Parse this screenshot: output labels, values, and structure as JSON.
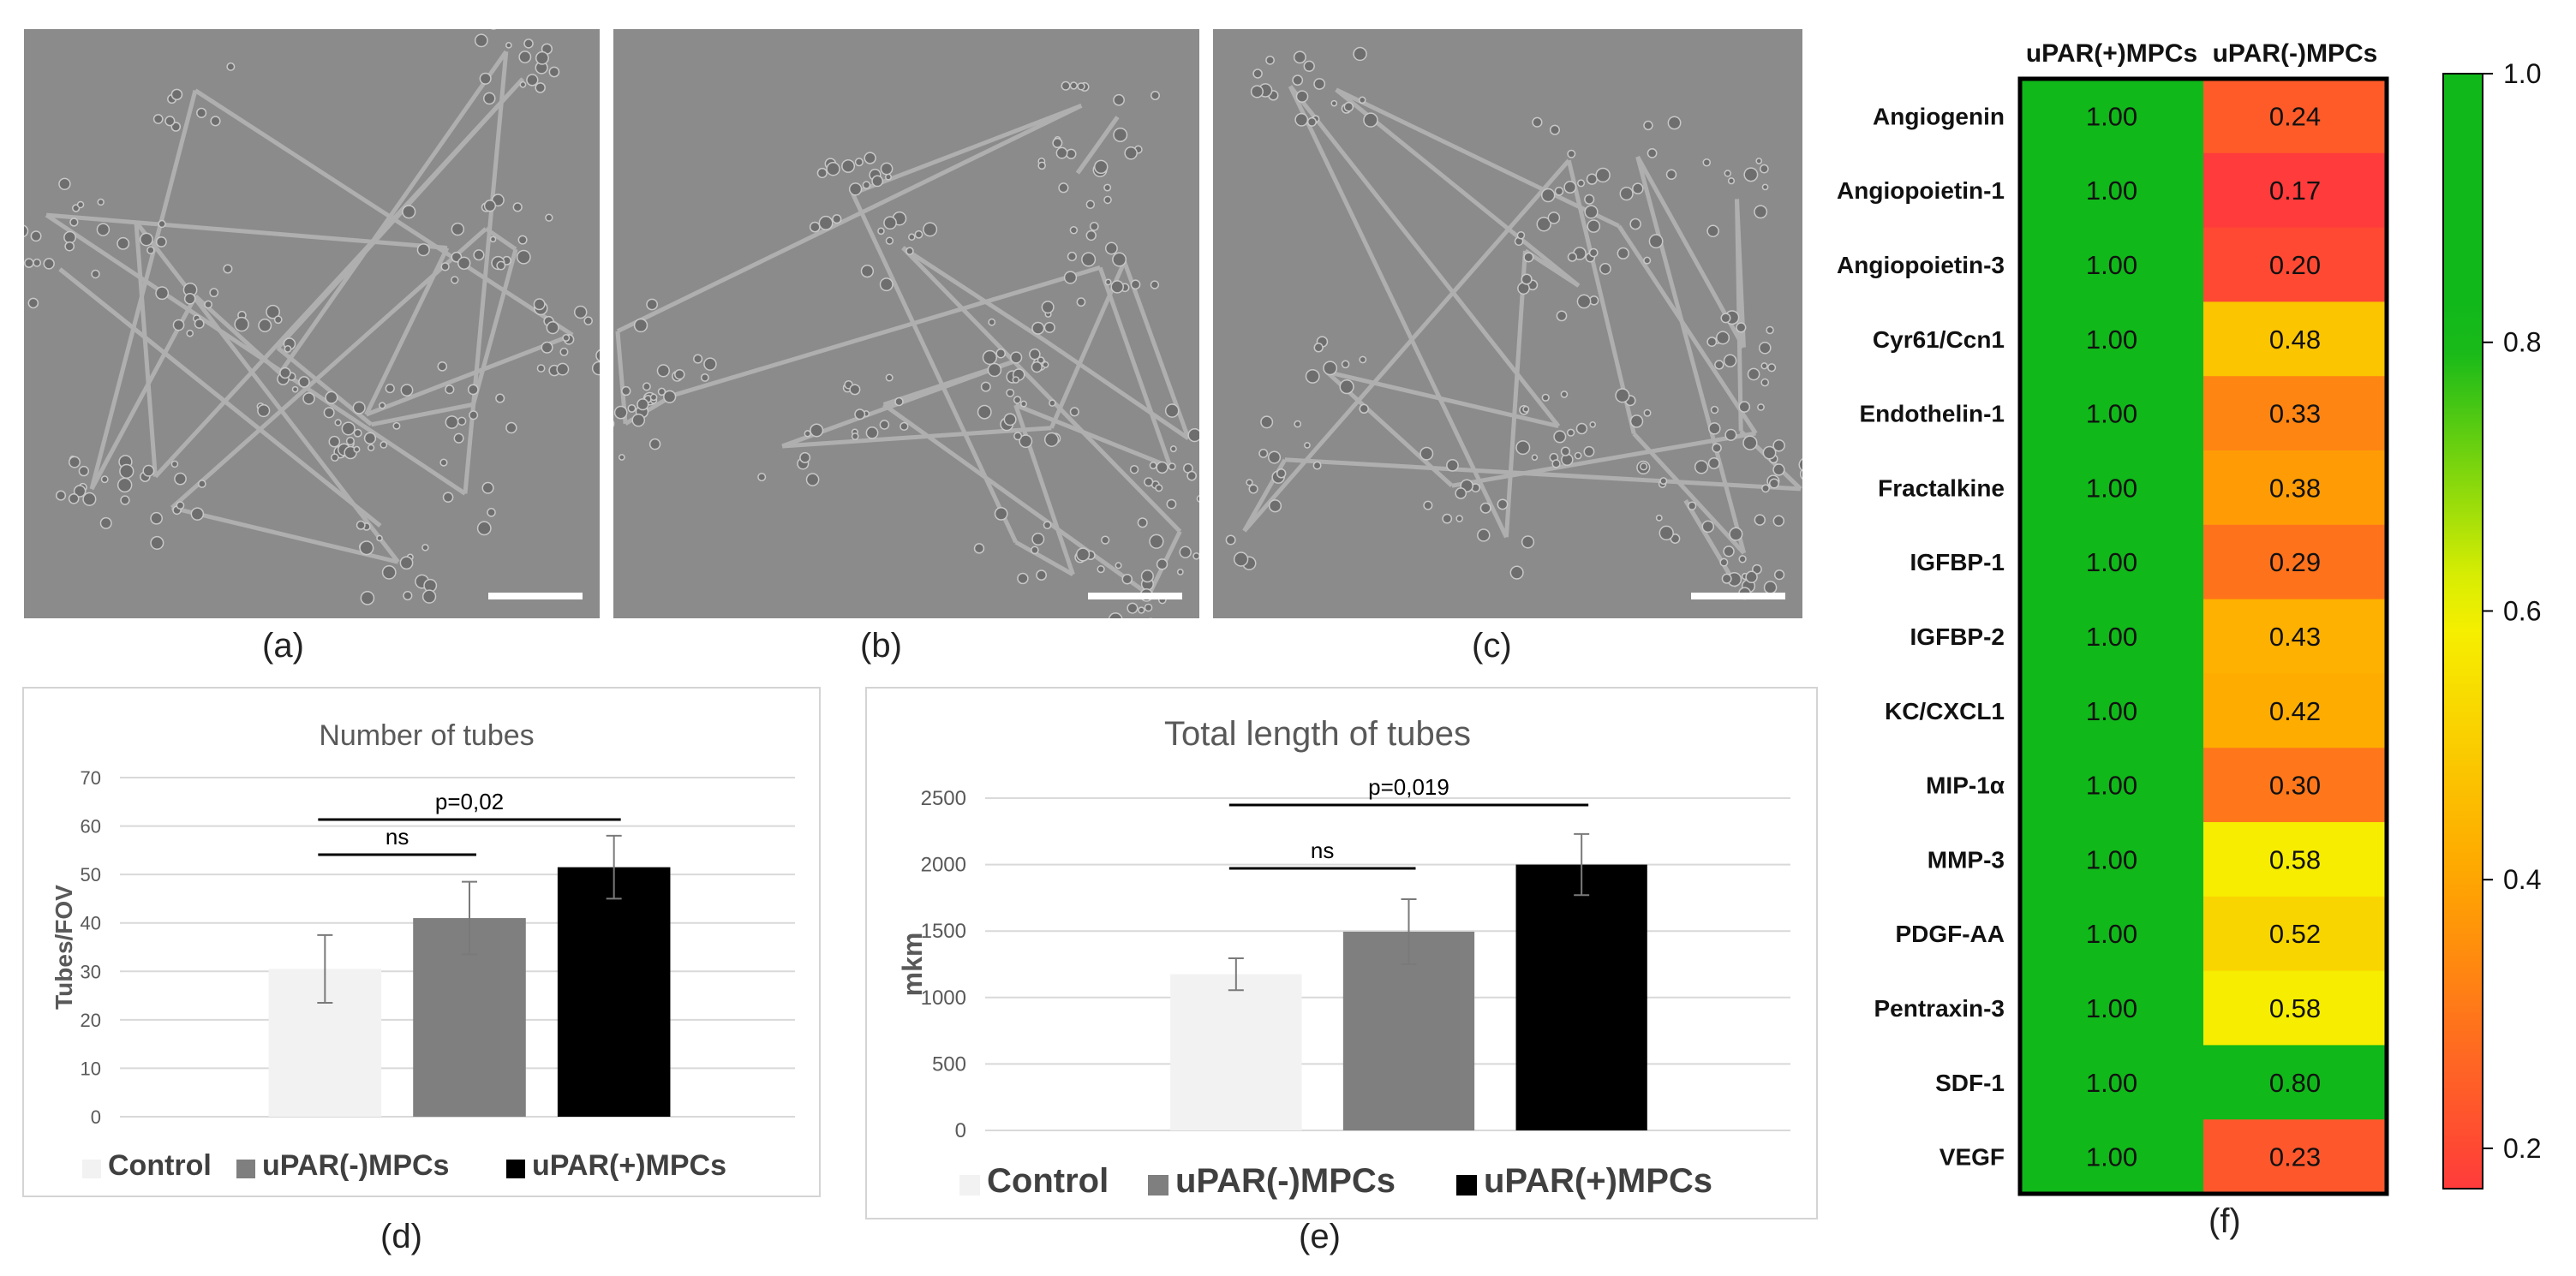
{
  "panels": {
    "a": "(a)",
    "b": "(b)",
    "c": "(c)",
    "d": "(d)",
    "e": "(e)",
    "f": "(f)"
  },
  "colors": {
    "control": "#f2f2f2",
    "uparneg": "#7f7f7f",
    "uparpos": "#000000",
    "heat_high": "#10b81a",
    "heat_mid": "#f5f500",
    "heat_low": "#ff3b3b"
  },
  "chart_data": [
    {
      "id": "d",
      "type": "bar",
      "title": "Number of tubes",
      "ylabel": "Tubes/FOV",
      "xlabel": "",
      "ylim": [
        0,
        70
      ],
      "yticks": [
        0,
        10,
        20,
        30,
        40,
        50,
        60,
        70
      ],
      "categories": [
        "Control",
        "uPAR(-)MPCs",
        "uPAR(+)MPCs"
      ],
      "values": [
        30.5,
        41,
        51.5
      ],
      "errors": [
        7,
        7.5,
        6.5
      ],
      "grid": true,
      "legend": "bottom",
      "legend_entries": [
        "Control",
        "uPAR(-)MPCs",
        "uPAR(+)MPCs"
      ],
      "annotations": [
        {
          "text": "ns",
          "from": 0,
          "to": 1,
          "level": 0
        },
        {
          "text": "p=0,02",
          "from": 0,
          "to": 2,
          "level": 1
        }
      ]
    },
    {
      "id": "e",
      "type": "bar",
      "title": "Total  length of tubes",
      "ylabel": "mkm",
      "xlabel": "",
      "ylim": [
        0,
        2500
      ],
      "yticks": [
        0,
        500,
        1000,
        1500,
        2000,
        2500
      ],
      "categories": [
        "Control",
        "uPAR(-)MPCs",
        "uPAR(+)MPCs"
      ],
      "values": [
        1175,
        1495,
        2000
      ],
      "errors": [
        120,
        245,
        230
      ],
      "grid": true,
      "legend": "bottom",
      "legend_entries": [
        "Control",
        "uPAR(-)MPCs",
        "uPAR(+)MPCs"
      ],
      "annotations": [
        {
          "text": "ns",
          "from": 0,
          "to": 1,
          "level": 0
        },
        {
          "text": "p=0,019",
          "from": 0,
          "to": 2,
          "level": 1
        }
      ]
    },
    {
      "id": "f",
      "type": "heatmap",
      "columns": [
        "uPAR(+)MPCs",
        "uPAR(-)MPCs"
      ],
      "rows": [
        "Angiogenin",
        "Angiopoietin-1",
        "Angiopoietin-3",
        "Cyr61/Ccn1",
        "Endothelin-1",
        "Fractalkine",
        "IGFBP-1",
        "IGFBP-2",
        "KC/CXCL1",
        "MIP-1α",
        "MMP-3",
        "PDGF-AA",
        "Pentraxin-3",
        "SDF-1",
        "VEGF"
      ],
      "values": [
        [
          1.0,
          0.24
        ],
        [
          1.0,
          0.17
        ],
        [
          1.0,
          0.2
        ],
        [
          1.0,
          0.48
        ],
        [
          1.0,
          0.33
        ],
        [
          1.0,
          0.38
        ],
        [
          1.0,
          0.29
        ],
        [
          1.0,
          0.43
        ],
        [
          1.0,
          0.42
        ],
        [
          1.0,
          0.3
        ],
        [
          1.0,
          0.58
        ],
        [
          1.0,
          0.52
        ],
        [
          1.0,
          0.58
        ],
        [
          1.0,
          0.8
        ],
        [
          1.0,
          0.23
        ]
      ],
      "value_labels": [
        [
          "1.00",
          "0.24"
        ],
        [
          "1.00",
          "0.17"
        ],
        [
          "1.00",
          "0.20"
        ],
        [
          "1.00",
          "0.48"
        ],
        [
          "1.00",
          "0.33"
        ],
        [
          "1.00",
          "0.38"
        ],
        [
          "1.00",
          "0.29"
        ],
        [
          "1.00",
          "0.43"
        ],
        [
          "1.00",
          "0.42"
        ],
        [
          "1.00",
          "0.30"
        ],
        [
          "1.00",
          "0.58"
        ],
        [
          "1.00",
          "0.52"
        ],
        [
          "1.00",
          "0.58"
        ],
        [
          "1.00",
          "0.80"
        ],
        [
          "1.00",
          "0.23"
        ]
      ],
      "colorbar": {
        "range": [
          0.17,
          1.0
        ],
        "ticks": [
          0.2,
          0.4,
          0.6,
          0.8,
          1.0
        ],
        "tick_labels": [
          "0.2",
          "0.4",
          "0.6",
          "0.8",
          "1.0"
        ]
      }
    }
  ]
}
